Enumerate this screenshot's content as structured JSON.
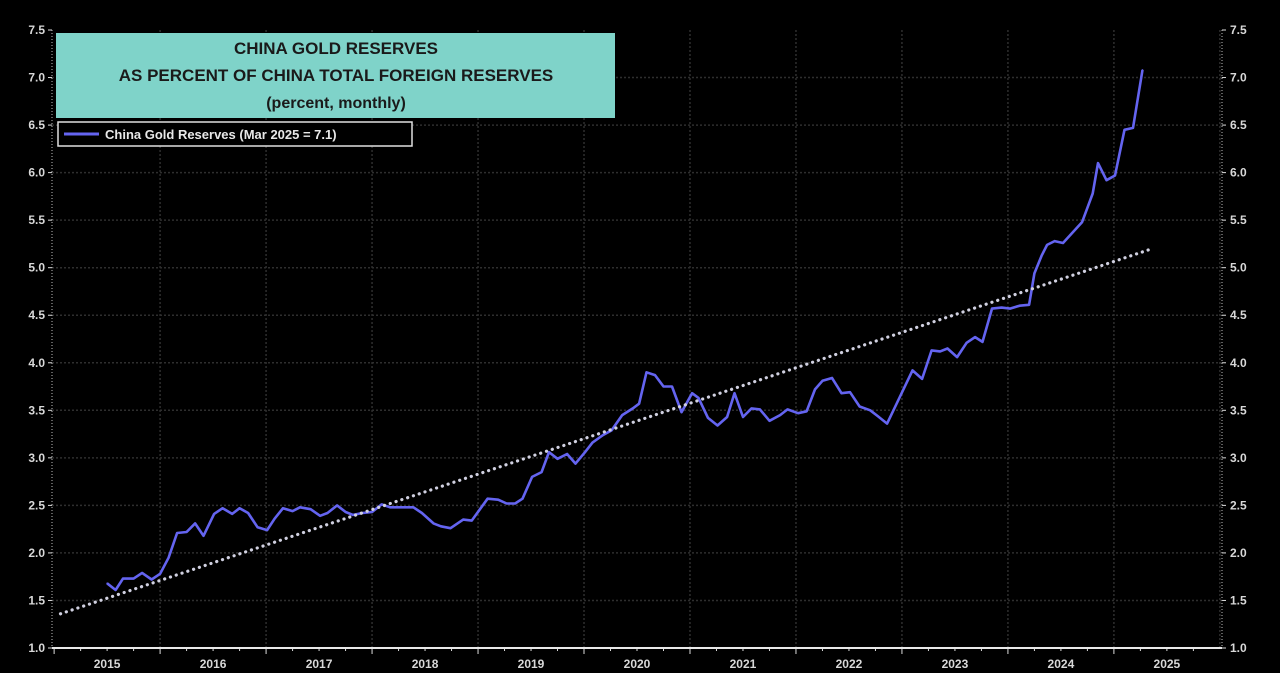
{
  "colors": {
    "background": "#000000",
    "series": "#6464f0",
    "trend": "#d0d0e0",
    "title_box": "#7fd3c9",
    "grid": "#2e2e2e"
  },
  "chart_data": {
    "type": "line",
    "title": [
      "CHINA GOLD RESERVES",
      "AS PERCENT OF CHINA TOTAL FOREIGN RESERVES",
      "(percent, monthly)"
    ],
    "xlabel": "",
    "ylabel": "",
    "xlim": [
      2014.98,
      2026.02
    ],
    "ylim": [
      1.0,
      7.5
    ],
    "grid": true,
    "legend_position": "top-left",
    "x_tick_labels": [
      "2015",
      "2016",
      "2017",
      "2018",
      "2019",
      "2020",
      "2021",
      "2022",
      "2023",
      "2024",
      "2025"
    ],
    "y_tick_labels": [
      "1.0",
      "1.5",
      "2.0",
      "2.5",
      "3.0",
      "3.5",
      "4.0",
      "4.5",
      "5.0",
      "5.5",
      "6.0",
      "6.5",
      "7.0",
      "7.5"
    ],
    "series": [
      {
        "name": "China Gold Reserves (Mar 2025 = 7.1)",
        "style": "solid",
        "points": [
          [
            2015.5,
            1.68
          ],
          [
            2015.58,
            1.61
          ],
          [
            2015.65,
            1.73
          ],
          [
            2015.75,
            1.73
          ],
          [
            2015.83,
            1.79
          ],
          [
            2015.92,
            1.72
          ],
          [
            2016.0,
            1.78
          ],
          [
            2016.08,
            1.95
          ],
          [
            2016.16,
            2.21
          ],
          [
            2016.25,
            2.22
          ],
          [
            2016.33,
            2.31
          ],
          [
            2016.41,
            2.18
          ],
          [
            2016.51,
            2.41
          ],
          [
            2016.59,
            2.47
          ],
          [
            2016.68,
            2.41
          ],
          [
            2016.75,
            2.47
          ],
          [
            2016.83,
            2.42
          ],
          [
            2016.92,
            2.27
          ],
          [
            2017.01,
            2.24
          ],
          [
            2017.08,
            2.36
          ],
          [
            2017.16,
            2.47
          ],
          [
            2017.25,
            2.44
          ],
          [
            2017.32,
            2.48
          ],
          [
            2017.42,
            2.46
          ],
          [
            2017.51,
            2.39
          ],
          [
            2017.58,
            2.42
          ],
          [
            2017.67,
            2.5
          ],
          [
            2017.75,
            2.43
          ],
          [
            2017.82,
            2.4
          ],
          [
            2017.91,
            2.42
          ],
          [
            2018.0,
            2.43
          ],
          [
            2018.09,
            2.51
          ],
          [
            2018.17,
            2.48
          ],
          [
            2018.26,
            2.48
          ],
          [
            2018.39,
            2.48
          ],
          [
            2018.47,
            2.42
          ],
          [
            2018.58,
            2.31
          ],
          [
            2018.65,
            2.28
          ],
          [
            2018.74,
            2.26
          ],
          [
            2018.86,
            2.35
          ],
          [
            2018.94,
            2.34
          ],
          [
            2019.09,
            2.57
          ],
          [
            2019.19,
            2.56
          ],
          [
            2019.27,
            2.52
          ],
          [
            2019.35,
            2.52
          ],
          [
            2019.42,
            2.57
          ],
          [
            2019.51,
            2.8
          ],
          [
            2019.6,
            2.85
          ],
          [
            2019.67,
            3.06
          ],
          [
            2019.75,
            2.99
          ],
          [
            2019.84,
            3.04
          ],
          [
            2019.92,
            2.94
          ],
          [
            2020.01,
            3.06
          ],
          [
            2020.08,
            3.16
          ],
          [
            2020.18,
            3.24
          ],
          [
            2020.26,
            3.29
          ],
          [
            2020.36,
            3.45
          ],
          [
            2020.46,
            3.52
          ],
          [
            2020.52,
            3.57
          ],
          [
            2020.59,
            3.9
          ],
          [
            2020.67,
            3.87
          ],
          [
            2020.75,
            3.75
          ],
          [
            2020.83,
            3.75
          ],
          [
            2020.92,
            3.48
          ],
          [
            2021.02,
            3.68
          ],
          [
            2021.08,
            3.63
          ],
          [
            2021.17,
            3.42
          ],
          [
            2021.26,
            3.34
          ],
          [
            2021.35,
            3.43
          ],
          [
            2021.42,
            3.68
          ],
          [
            2021.5,
            3.43
          ],
          [
            2021.58,
            3.52
          ],
          [
            2021.66,
            3.51
          ],
          [
            2021.75,
            3.39
          ],
          [
            2021.85,
            3.45
          ],
          [
            2021.92,
            3.51
          ],
          [
            2022.02,
            3.47
          ],
          [
            2022.1,
            3.49
          ],
          [
            2022.18,
            3.72
          ],
          [
            2022.25,
            3.81
          ],
          [
            2022.34,
            3.84
          ],
          [
            2022.43,
            3.68
          ],
          [
            2022.51,
            3.69
          ],
          [
            2022.6,
            3.54
          ],
          [
            2022.7,
            3.5
          ],
          [
            2022.77,
            3.44
          ],
          [
            2022.86,
            3.36
          ],
          [
            2022.98,
            3.64
          ],
          [
            2023.1,
            3.92
          ],
          [
            2023.19,
            3.83
          ],
          [
            2023.28,
            4.13
          ],
          [
            2023.36,
            4.12
          ],
          [
            2023.43,
            4.15
          ],
          [
            2023.52,
            4.06
          ],
          [
            2023.61,
            4.21
          ],
          [
            2023.69,
            4.27
          ],
          [
            2023.76,
            4.22
          ],
          [
            2023.85,
            4.57
          ],
          [
            2023.94,
            4.58
          ],
          [
            2024.02,
            4.57
          ],
          [
            2024.11,
            4.6
          ],
          [
            2024.2,
            4.61
          ],
          [
            2024.25,
            4.94
          ],
          [
            2024.32,
            5.13
          ],
          [
            2024.37,
            5.24
          ],
          [
            2024.44,
            5.28
          ],
          [
            2024.52,
            5.26
          ],
          [
            2024.61,
            5.37
          ],
          [
            2024.7,
            5.48
          ],
          [
            2024.75,
            5.63
          ],
          [
            2024.8,
            5.78
          ],
          [
            2024.85,
            6.1
          ],
          [
            2024.93,
            5.92
          ],
          [
            2025.01,
            5.97
          ],
          [
            2025.1,
            6.45
          ],
          [
            2025.18,
            6.47
          ],
          [
            2025.27,
            7.08
          ]
        ]
      },
      {
        "name": "trend",
        "style": "dotted",
        "points": [
          [
            2015.06,
            1.36
          ],
          [
            2025.36,
            5.2
          ]
        ]
      }
    ]
  }
}
